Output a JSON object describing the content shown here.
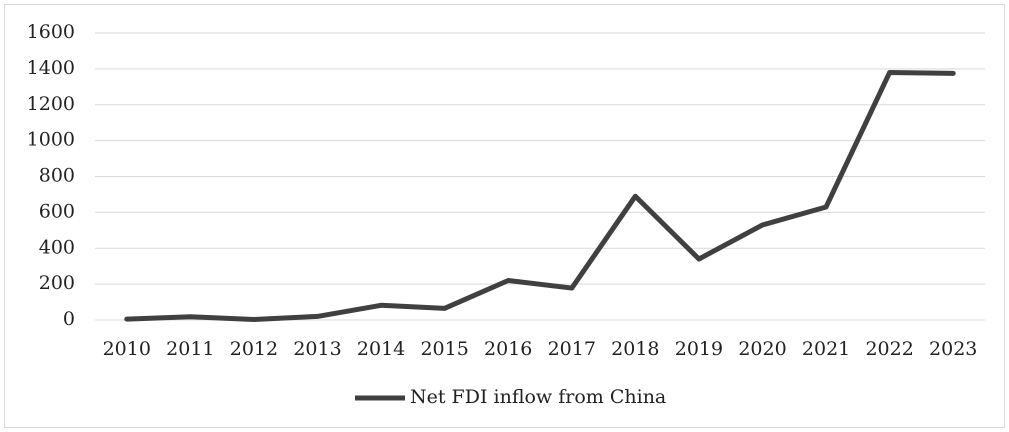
{
  "chart_data": {
    "type": "line",
    "categories": [
      "2010",
      "2011",
      "2012",
      "2013",
      "2014",
      "2015",
      "2016",
      "2017",
      "2018",
      "2019",
      "2020",
      "2021",
      "2022",
      "2023"
    ],
    "series": [
      {
        "name": "Net FDI inflow from China",
        "color": "#404040",
        "values": [
          5,
          18,
          3,
          20,
          82,
          65,
          220,
          178,
          690,
          340,
          530,
          630,
          1380,
          1375
        ]
      }
    ],
    "ylim": [
      0,
      1600
    ],
    "yticks": [
      0,
      200,
      400,
      600,
      800,
      1000,
      1200,
      1400,
      1600
    ],
    "grid": true,
    "legend": "bottom"
  }
}
